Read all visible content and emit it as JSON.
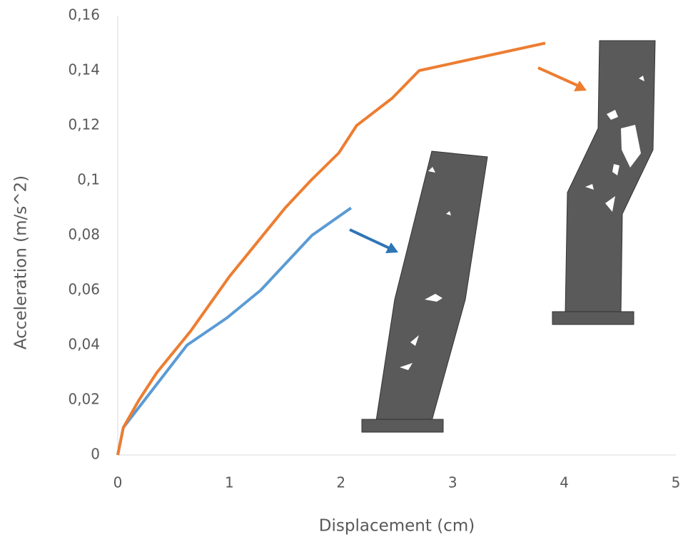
{
  "chart_data": {
    "type": "line",
    "x_label": "Displacement (cm)",
    "y_label": "Acceleration (m/s^2)",
    "series": [
      {
        "color": "#5b9bd5",
        "x": [
          0,
          0.05,
          0.62,
          0.98,
          1.28,
          1.74,
          2.09
        ],
        "values": [
          0,
          0.01,
          0.04,
          0.05,
          0.06,
          0.08,
          0.09
        ]
      },
      {
        "color": "#ed7d31",
        "x": [
          0,
          0.05,
          0.19,
          0.35,
          0.65,
          1,
          1.5,
          1.73,
          1.98,
          2.14,
          2.46,
          2.7,
          3.83
        ],
        "values": [
          0,
          0.01,
          0.02,
          0.03,
          0.045,
          0.065,
          0.09,
          0.1,
          0.11,
          0.12,
          0.13,
          0.14,
          0.15
        ]
      }
    ],
    "xlim": [
      0,
      5
    ],
    "xticks": [
      0,
      1,
      2,
      3,
      4,
      5
    ],
    "ylim": [
      0,
      0.16
    ],
    "yticks": [
      0,
      {
        "value": 0.02,
        "label": "0,02"
      },
      {
        "value": 0.04,
        "label": "0,04"
      },
      {
        "value": 0.06,
        "label": "0,06"
      },
      {
        "value": 0.08,
        "label": "0,08"
      },
      {
        "value": 0.1,
        "label": "0,1"
      },
      {
        "value": 0.12,
        "label": "0,12"
      },
      {
        "value": 0.14,
        "label": "0,14"
      },
      {
        "value": 0.16,
        "label": "0,16"
      }
    ],
    "grid": false
  }
}
